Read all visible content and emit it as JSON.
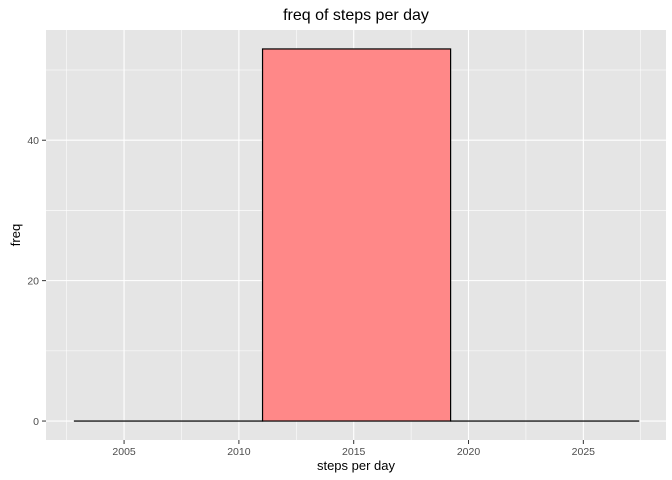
{
  "chart_data": {
    "type": "bar",
    "title": "freq of steps per day",
    "xlabel": "steps per day",
    "ylabel": "freq",
    "bins": [
      {
        "x_start": 2002.84,
        "x_end": 2011.03,
        "count": 0
      },
      {
        "x_start": 2011.03,
        "x_end": 2019.22,
        "count": 53
      },
      {
        "x_start": 2019.22,
        "x_end": 2027.41,
        "count": 0
      }
    ],
    "xlim": [
      2001.6,
      2028.6
    ],
    "ylim": [
      -2.7,
      55.7
    ],
    "x_ticks": [
      2005,
      2010,
      2015,
      2020,
      2025
    ],
    "x_tick_labels": [
      "2005",
      "2010",
      "2015",
      "2020",
      "2025"
    ],
    "y_ticks": [
      0,
      20,
      40
    ],
    "y_tick_labels": [
      "0",
      "20",
      "40"
    ],
    "grid": true,
    "panel_background": "#e5e5e5",
    "grid_color": "#ffffff",
    "bar_fill": "#ff8888",
    "bar_outline": "#000000",
    "tick_color": "#333333",
    "tick_label_color": "#4d4d4d"
  }
}
